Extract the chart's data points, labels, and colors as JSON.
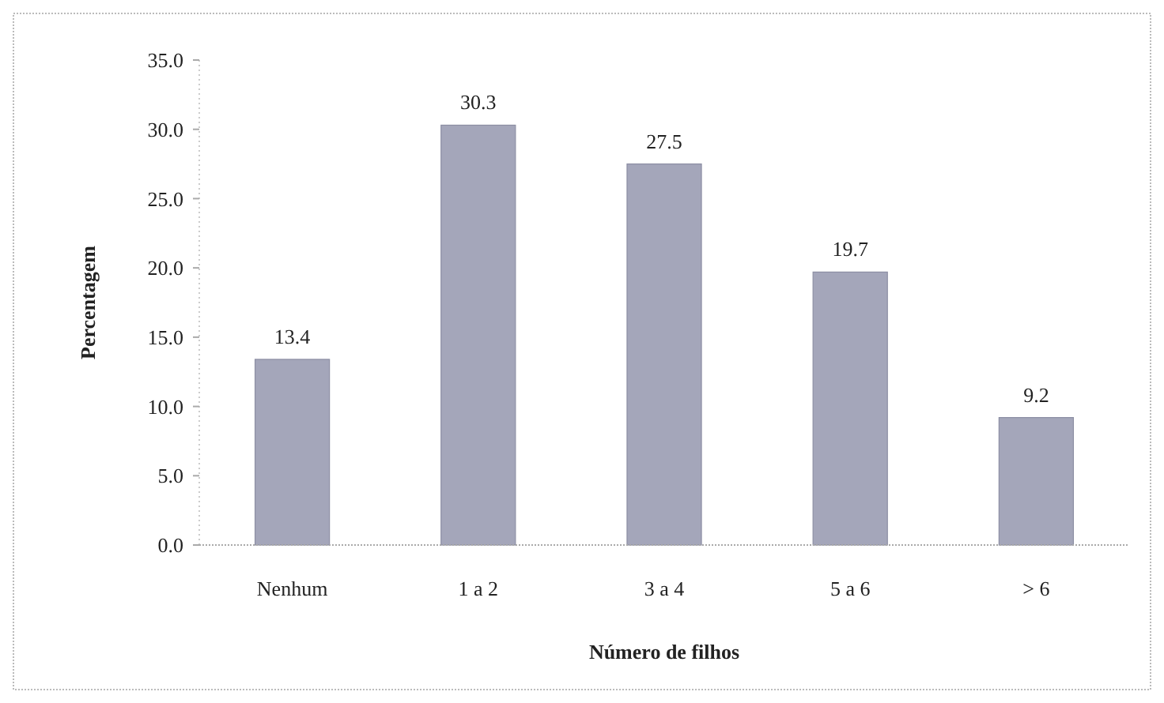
{
  "chart_data": {
    "type": "bar",
    "xlabel": "Número de filhos",
    "ylabel": "Percentagem",
    "categories": [
      "Nenhum",
      "1 a 2",
      "3 a 4",
      "5 a 6",
      "> 6"
    ],
    "values": [
      13.4,
      30.3,
      27.5,
      19.7,
      9.2
    ],
    "color": "#a4a6ba",
    "data_labels": true,
    "grid": false,
    "ylim": [
      0,
      35
    ],
    "yticks": [
      {
        "value": 0,
        "label": "0.0"
      },
      {
        "value": 5,
        "label": "5.0"
      },
      {
        "value": 10,
        "label": "10.0"
      },
      {
        "value": 15,
        "label": "15.0"
      },
      {
        "value": 20,
        "label": "20.0"
      },
      {
        "value": 25,
        "label": "25.0"
      },
      {
        "value": 30,
        "label": "30.0"
      },
      {
        "value": 35,
        "label": "35.0"
      }
    ]
  }
}
